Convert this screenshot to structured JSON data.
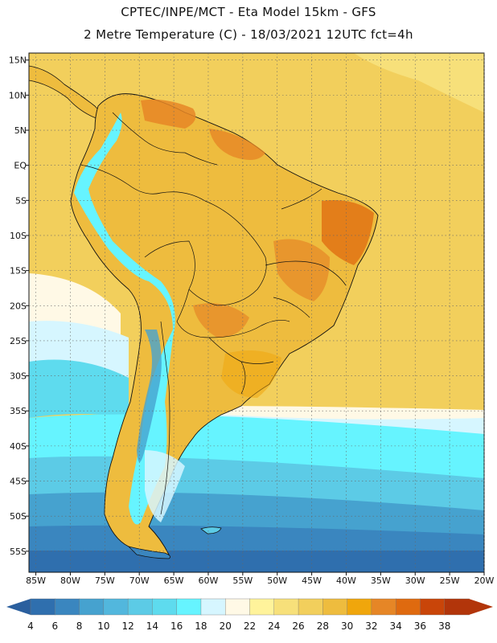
{
  "header": {
    "line1": "CPTEC/INPE/MCT -  Eta Model 15km - GFS",
    "line2": "2 Metre Temperature (C) - 18/03/2021 12UTC fct=4h"
  },
  "map": {
    "lon_min": -86,
    "lon_max": -20,
    "lat_min": -58,
    "lat_max": 16,
    "lat_ticks": [
      {
        "value": 15,
        "label": "15N"
      },
      {
        "value": 10,
        "label": "10N"
      },
      {
        "value": 5,
        "label": "5N"
      },
      {
        "value": 0,
        "label": "EQ"
      },
      {
        "value": -5,
        "label": "5S"
      },
      {
        "value": -10,
        "label": "10S"
      },
      {
        "value": -15,
        "label": "15S"
      },
      {
        "value": -20,
        "label": "20S"
      },
      {
        "value": -25,
        "label": "25S"
      },
      {
        "value": -30,
        "label": "30S"
      },
      {
        "value": -35,
        "label": "35S"
      },
      {
        "value": -40,
        "label": "40S"
      },
      {
        "value": -45,
        "label": "45S"
      },
      {
        "value": -50,
        "label": "50S"
      },
      {
        "value": -55,
        "label": "55S"
      }
    ],
    "lon_ticks": [
      {
        "value": -85,
        "label": "85W"
      },
      {
        "value": -80,
        "label": "80W"
      },
      {
        "value": -75,
        "label": "75W"
      },
      {
        "value": -70,
        "label": "70W"
      },
      {
        "value": -65,
        "label": "65W"
      },
      {
        "value": -60,
        "label": "60W"
      },
      {
        "value": -55,
        "label": "55W"
      },
      {
        "value": -50,
        "label": "50W"
      },
      {
        "value": -45,
        "label": "45W"
      },
      {
        "value": -40,
        "label": "40W"
      },
      {
        "value": -35,
        "label": "35W"
      },
      {
        "value": -30,
        "label": "30W"
      },
      {
        "value": -25,
        "label": "25W"
      },
      {
        "value": -20,
        "label": "20W"
      }
    ]
  },
  "colorbar": {
    "labels": [
      "4",
      "6",
      "8",
      "10",
      "12",
      "14",
      "16",
      "18",
      "20",
      "22",
      "24",
      "26",
      "28",
      "30",
      "32",
      "34",
      "36",
      "38"
    ],
    "colors": [
      "#2f6fae",
      "#3a86bf",
      "#46a2cf",
      "#52b7dd",
      "#5ccbe6",
      "#5edbee",
      "#66f4ff",
      "#d6f6ff",
      "#fff9e6",
      "#fff39b",
      "#f7e07a",
      "#f2cf5c",
      "#eebc3e",
      "#f0a60c",
      "#e68626",
      "#df6a0f",
      "#c94509",
      "#b2350a"
    ],
    "low_color": "#2a5f9e",
    "high_color": "#b2350a"
  },
  "colors": {
    "ocean_warm": "#f2cf5c",
    "land_warm": "#eebc3e",
    "land_hot": "#e68626",
    "andes_cold": "#66f4ff",
    "ocean_cold": "#3a86bf",
    "ocean_coldest": "#2f6fae",
    "border": "#111111"
  }
}
